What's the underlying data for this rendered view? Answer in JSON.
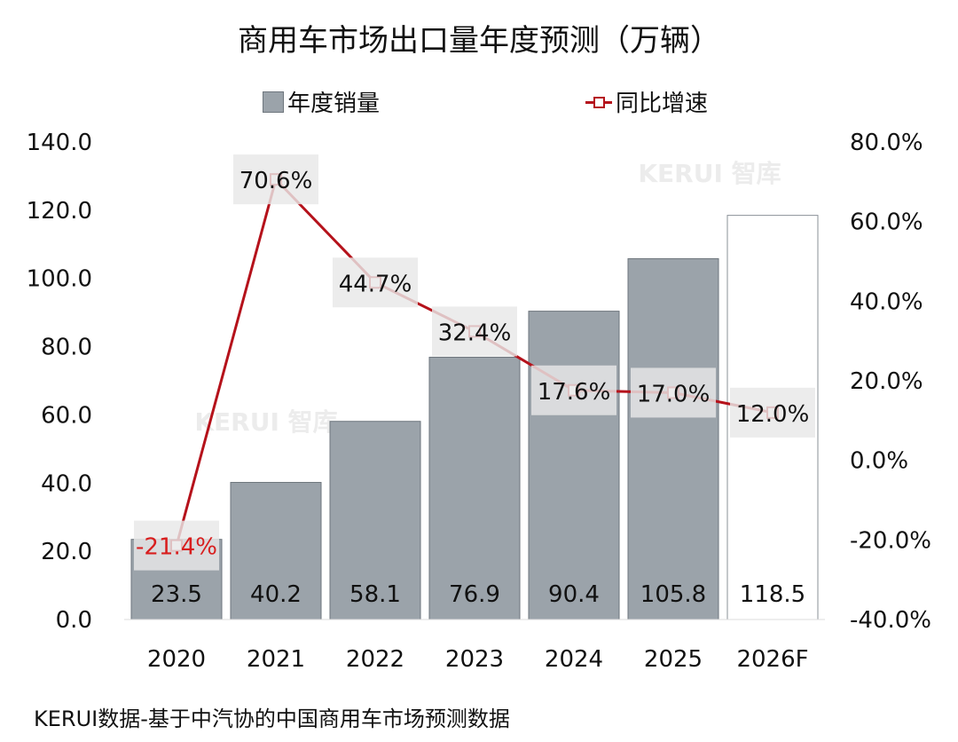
{
  "chart_data": {
    "type": "bar",
    "title": "商用车市场出口量年度预测（万辆）",
    "categories": [
      "2020",
      "2021",
      "2022",
      "2023",
      "2024",
      "2025",
      "2026F"
    ],
    "series": [
      {
        "name": "年度销量",
        "type": "bar",
        "axis": "left",
        "values": [
          23.5,
          40.2,
          58.1,
          76.9,
          90.4,
          105.8,
          118.5
        ],
        "labels": [
          "23.5",
          "40.2",
          "58.1",
          "76.9",
          "90.4",
          "105.8",
          "118.5"
        ],
        "color": "#9ba3aa",
        "forecast_color": "#ffffff"
      },
      {
        "name": "同比增速",
        "type": "line",
        "axis": "right",
        "values": [
          -21.4,
          70.6,
          44.7,
          32.4,
          17.6,
          17.0,
          12.0
        ],
        "labels": [
          "-21.4%",
          "70.6%",
          "44.7%",
          "32.4%",
          "17.6%",
          "17.0%",
          "12.0%"
        ],
        "color": "#b5121b"
      }
    ],
    "left_axis": {
      "ylim": [
        0,
        140
      ],
      "ticks": [
        "0.0",
        "20.0",
        "40.0",
        "60.0",
        "80.0",
        "100.0",
        "120.0",
        "140.0"
      ]
    },
    "right_axis": {
      "ylim": [
        -40,
        80
      ],
      "ticks": [
        "-40.0%",
        "-20.0%",
        "0.0%",
        "20.0%",
        "40.0%",
        "60.0%",
        "80.0%"
      ]
    },
    "legend": "top",
    "grid": false
  },
  "watermark": "KERUI 智库",
  "footer": "KERUI数据-基于中汽协的中国商用车市场预测数据"
}
